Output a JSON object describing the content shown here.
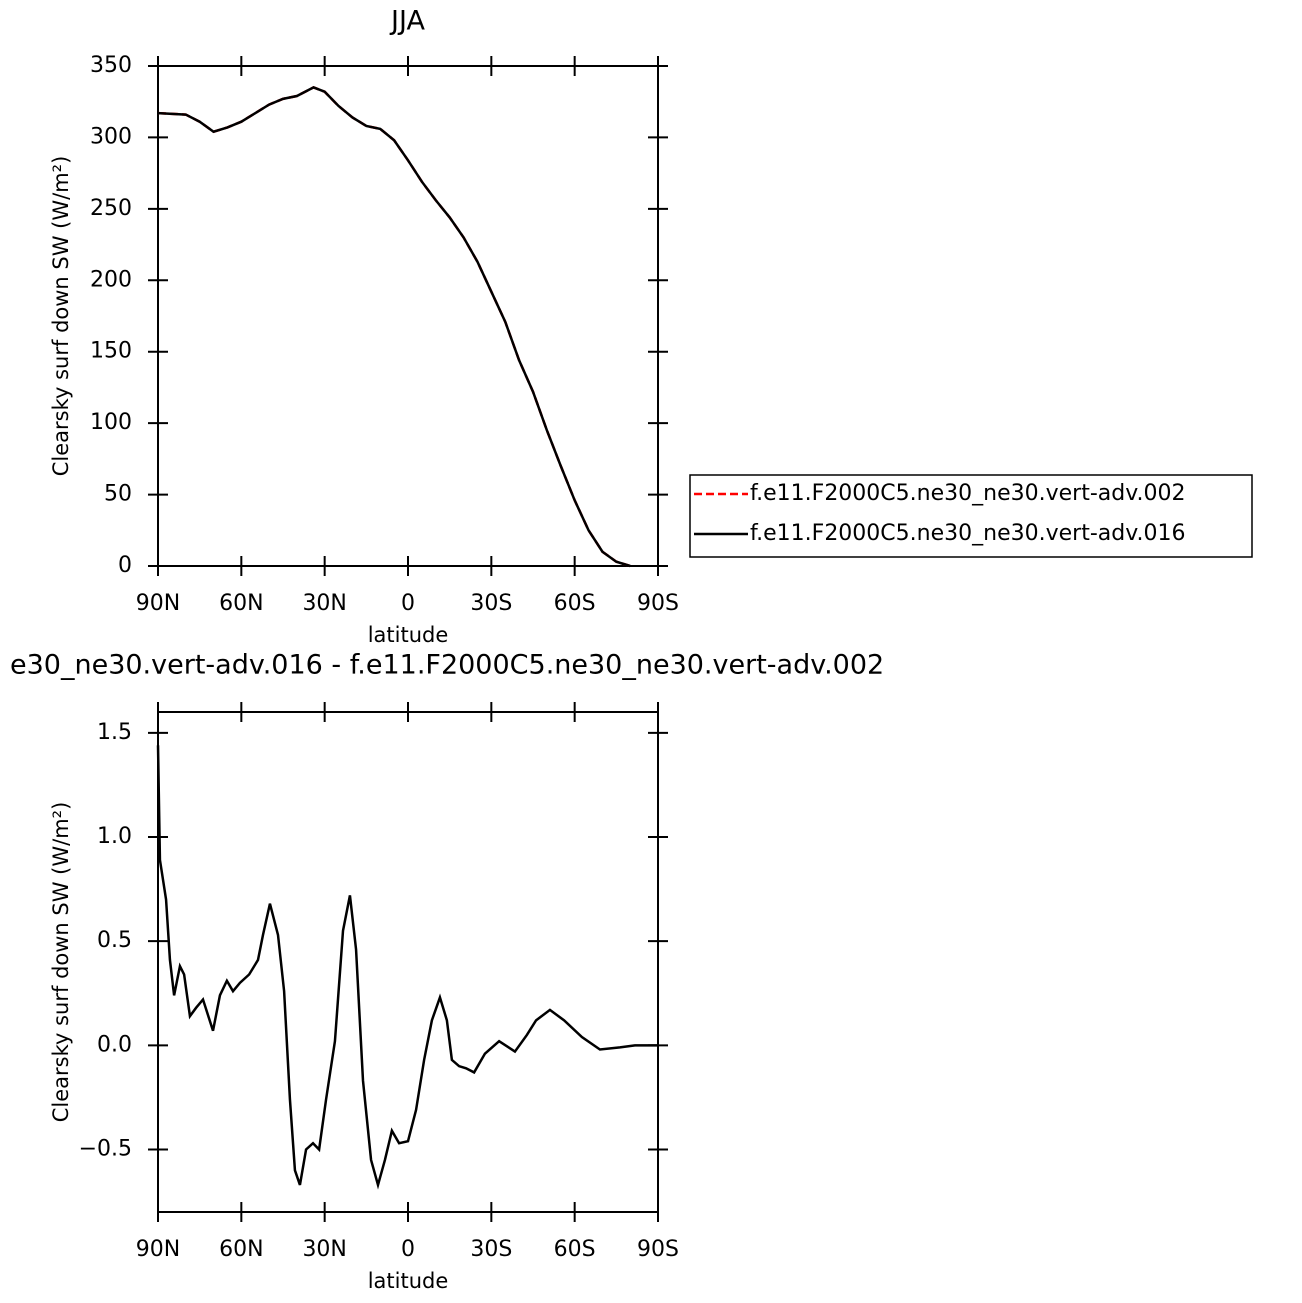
{
  "chart_data": [
    {
      "type": "line",
      "title": "JJA",
      "xlabel": "latitude",
      "ylabel": "Clearsky surf down SW (W/m²)",
      "xlim": [
        90,
        -90
      ],
      "xticks": [
        {
          "value": 90,
          "label": "90N"
        },
        {
          "value": 60,
          "label": "60N"
        },
        {
          "value": 30,
          "label": "30N"
        },
        0,
        {
          "value": -30,
          "label": "30S"
        },
        {
          "value": -60,
          "label": "60S"
        },
        {
          "value": -90,
          "label": "90S"
        }
      ],
      "ylim": [
        0,
        350
      ],
      "yticks": [
        0,
        50,
        100,
        150,
        200,
        250,
        300,
        350
      ],
      "x": [
        90,
        80,
        75,
        70,
        65,
        60,
        55,
        50,
        45,
        40,
        34,
        30,
        25,
        20,
        15,
        10,
        5,
        0,
        -5,
        -10,
        -15,
        -20,
        -25,
        -30,
        -35,
        -40,
        -45,
        -50,
        -55,
        -60,
        -65,
        -70,
        -75,
        -80
      ],
      "legend": "right",
      "series": [
        {
          "name": "f.e11.F2000C5.ne30_ne30.vert-adv.002",
          "color": "#ff0000",
          "line_style": "dashed",
          "values": [
            317,
            316,
            311,
            304,
            307,
            311,
            317,
            323,
            327,
            329,
            335,
            332,
            322,
            314,
            308,
            306,
            298,
            284,
            269,
            256,
            244,
            230,
            213,
            192,
            171,
            144,
            122,
            95,
            70,
            46,
            25,
            10,
            3,
            0
          ]
        },
        {
          "name": "f.e11.F2000C5.ne30_ne30.vert-adv.016",
          "color": "#000000",
          "line_style": "solid",
          "values": [
            317,
            316,
            311,
            304,
            307,
            311,
            317,
            323,
            327,
            329,
            335,
            332,
            322,
            314,
            308,
            306,
            298,
            284,
            269,
            256,
            244,
            230,
            213,
            192,
            171,
            144,
            122,
            95,
            70,
            46,
            25,
            10,
            3,
            0
          ]
        }
      ]
    },
    {
      "type": "line",
      "title": "e30_ne30.vert-adv.016 - f.e11.F2000C5.ne30_ne30.vert-adv.002",
      "xlabel": "latitude",
      "ylabel": "Clearsky surf down SW (W/m²)",
      "xlim": [
        90,
        -90
      ],
      "xticks": [
        {
          "value": 90,
          "label": "90N"
        },
        {
          "value": 60,
          "label": "60N"
        },
        {
          "value": 30,
          "label": "30N"
        },
        0,
        {
          "value": -30,
          "label": "30S"
        },
        {
          "value": -60,
          "label": "60S"
        },
        {
          "value": -90,
          "label": "90S"
        }
      ],
      "ylim": [
        -0.8,
        1.6
      ],
      "yticks": [
        {
          "value": -0.5,
          "label": "−0.5"
        },
        {
          "value": 0,
          "label": "0.0"
        },
        0.5,
        {
          "value": 1,
          "label": "1.0"
        },
        1.5
      ],
      "x": [
        90,
        89.3,
        87.1,
        85.7,
        84.2,
        82.1,
        80.6,
        78.5,
        76.3,
        73.8,
        70.2,
        67.7,
        65.2,
        63,
        60.5,
        57.2,
        54,
        52.2,
        49.7,
        46.8,
        44.6,
        42.5,
        40.7,
        38.9,
        36.7,
        34.2,
        32,
        29.5,
        26.3,
        23.4,
        20.9,
        18.7,
        16.2,
        13.3,
        10.8,
        8.3,
        5.8,
        3.2,
        0,
        -2.9,
        -5.8,
        -8.6,
        -11.5,
        -14,
        -15.8,
        -18.4,
        -20.9,
        -23.8,
        -27.7,
        -32.8,
        -38.5,
        -42.8,
        -46.1,
        -51.1,
        -56.2,
        -62.6,
        -69.1,
        -76.3,
        -81.7,
        -90
      ],
      "series": [
        {
          "color": "#000000",
          "line_style": "solid",
          "values": [
            1.44,
            0.89,
            0.7,
            0.41,
            0.24,
            0.38,
            0.34,
            0.14,
            0.18,
            0.22,
            0.07,
            0.24,
            0.31,
            0.26,
            0.3,
            0.34,
            0.41,
            0.53,
            0.68,
            0.53,
            0.26,
            -0.26,
            -0.6,
            -0.67,
            -0.5,
            -0.47,
            -0.5,
            -0.26,
            0.02,
            0.55,
            0.72,
            0.46,
            -0.17,
            -0.55,
            -0.67,
            -0.55,
            -0.41,
            -0.47,
            -0.46,
            -0.31,
            -0.07,
            0.12,
            0.23,
            0.12,
            -0.07,
            -0.1,
            -0.11,
            -0.13,
            -0.04,
            0.02,
            -0.03,
            0.05,
            0.12,
            0.17,
            0.12,
            0.04,
            -0.02,
            -0.01,
            0,
            0
          ]
        }
      ]
    }
  ]
}
